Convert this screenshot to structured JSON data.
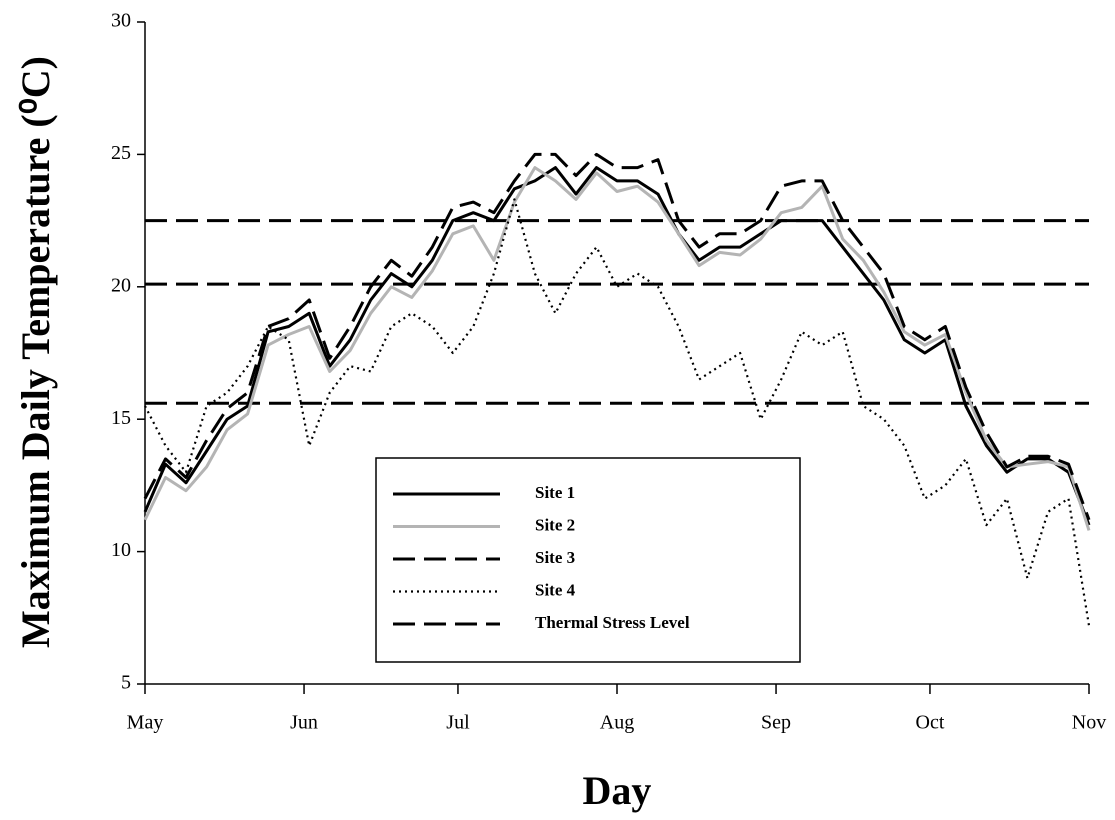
{
  "chart_data": {
    "type": "line",
    "x_label": "Day",
    "y_label": "Maximum Daily Temperature (⁰C)",
    "x": [
      0,
      4,
      8,
      12,
      16,
      20,
      24,
      28,
      32,
      36,
      40,
      44,
      48,
      52,
      56,
      60,
      64,
      68,
      72,
      76,
      80,
      84,
      88,
      92,
      96,
      100,
      104,
      108,
      112,
      116,
      120,
      124,
      128,
      132,
      136,
      140,
      144,
      148,
      152,
      156,
      160,
      164,
      168,
      172,
      176,
      180,
      184
    ],
    "xlim": [
      0,
      184
    ],
    "xticks": [
      {
        "value": 0,
        "label": "May"
      },
      {
        "value": 31,
        "label": "Jun"
      },
      {
        "value": 61,
        "label": "Jul"
      },
      {
        "value": 92,
        "label": "Aug"
      },
      {
        "value": 123,
        "label": "Sep"
      },
      {
        "value": 153,
        "label": "Oct"
      },
      {
        "value": 184,
        "label": "Nov"
      }
    ],
    "ylim": [
      5,
      30
    ],
    "yticks": [
      5,
      10,
      15,
      20,
      25,
      30
    ],
    "series": [
      {
        "name": "Site 1",
        "color": "#000000",
        "line_style": "solid",
        "values": [
          11.5,
          13.3,
          12.6,
          13.8,
          15.0,
          15.5,
          18.3,
          18.5,
          19.0,
          17.0,
          18.0,
          19.5,
          20.5,
          20.0,
          21.0,
          22.5,
          22.8,
          22.5,
          23.7,
          24.0,
          24.5,
          23.5,
          24.5,
          24.0,
          24.0,
          23.5,
          22.0,
          21.0,
          21.5,
          21.5,
          22.0,
          22.5,
          22.5,
          22.5,
          21.5,
          20.5,
          19.5,
          18.0,
          17.5,
          18.0,
          15.5,
          14.0,
          13.0,
          13.5,
          13.5,
          13.0,
          11.0
        ]
      },
      {
        "name": "Site 2",
        "color": "#b4b4b4",
        "line_style": "solid",
        "values": [
          11.2,
          12.8,
          12.3,
          13.2,
          14.6,
          15.2,
          17.8,
          18.2,
          18.5,
          16.8,
          17.6,
          19.0,
          20.0,
          19.6,
          20.6,
          22.0,
          22.3,
          21.0,
          23.2,
          24.5,
          24.0,
          23.3,
          24.3,
          23.6,
          23.8,
          23.2,
          22.0,
          20.8,
          21.3,
          21.2,
          21.8,
          22.8,
          23.0,
          23.8,
          21.8,
          21.0,
          19.8,
          18.3,
          17.8,
          18.2,
          16.0,
          14.2,
          13.2,
          13.3,
          13.4,
          13.2,
          10.8
        ]
      },
      {
        "name": "Site 3",
        "color": "#000000",
        "line_style": "dashed",
        "values": [
          12.0,
          13.5,
          12.8,
          14.2,
          15.4,
          16.0,
          18.5,
          18.8,
          19.5,
          17.3,
          18.5,
          20.0,
          21.0,
          20.4,
          21.5,
          23.0,
          23.2,
          22.8,
          24.0,
          25.0,
          25.0,
          24.2,
          25.0,
          24.5,
          24.5,
          24.8,
          22.5,
          21.5,
          22.0,
          22.0,
          22.5,
          23.8,
          24.0,
          24.0,
          22.5,
          21.5,
          20.5,
          18.5,
          18.0,
          18.5,
          16.2,
          14.5,
          13.2,
          13.6,
          13.6,
          13.3,
          11.2
        ]
      },
      {
        "name": "Site 4",
        "color": "#000000",
        "line_style": "dotted",
        "values": [
          15.5,
          14.0,
          13.0,
          15.5,
          16.0,
          17.0,
          18.5,
          18.0,
          14.0,
          16.0,
          17.0,
          16.8,
          18.5,
          19.0,
          18.5,
          17.5,
          18.5,
          20.5,
          23.3,
          20.5,
          19.0,
          20.5,
          21.5,
          20.0,
          20.5,
          20.0,
          18.5,
          16.5,
          17.0,
          17.5,
          15.0,
          16.5,
          18.3,
          17.8,
          18.3,
          15.5,
          15.0,
          14.0,
          12.0,
          12.5,
          13.5,
          11.0,
          12.0,
          9.0,
          11.5,
          12.0,
          7.2
        ]
      }
    ],
    "reference_lines": {
      "name": "Thermal Stress Level",
      "color": "#000000",
      "line_style": "dashed",
      "values": [
        22.5,
        20.1,
        15.6
      ]
    },
    "legend": "lower-center"
  }
}
